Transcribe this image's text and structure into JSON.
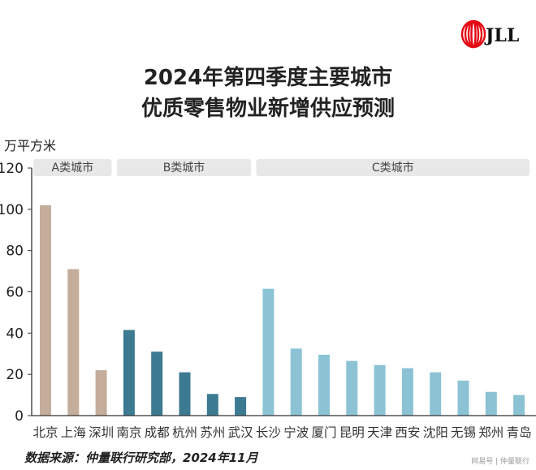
{
  "logo": {
    "text": "JLL",
    "color": "#e30613"
  },
  "chart_data": {
    "type": "bar",
    "title_lines": [
      "2024年第四季度主要城市",
      "优质零售物业新增供应预测"
    ],
    "ylabel": "万平方米",
    "ylim": [
      0,
      120
    ],
    "yticks": [
      0,
      20,
      40,
      60,
      80,
      100,
      120
    ],
    "grid": false,
    "categories": [
      "北京",
      "上海",
      "深圳",
      "南京",
      "成都",
      "杭州",
      "苏州",
      "武汉",
      "长沙",
      "宁波",
      "厦门",
      "昆明",
      "天津",
      "西安",
      "沈阳",
      "无锡",
      "郑州",
      "青岛"
    ],
    "values": [
      102,
      71,
      22,
      41.5,
      31,
      21,
      10.5,
      9,
      61.5,
      32.5,
      29.5,
      26.5,
      24.5,
      23,
      21,
      17,
      11.5,
      10
    ],
    "groups": [
      {
        "label": "A类城市",
        "start": 0,
        "end": 2,
        "color": "#c4ad9a"
      },
      {
        "label": "B类城市",
        "start": 3,
        "end": 7,
        "color": "#3c7a91"
      },
      {
        "label": "C类城市",
        "start": 8,
        "end": 17,
        "color": "#8cc3d4"
      }
    ]
  },
  "footer": {
    "source": "数据来源：仲量联行研究部，2024年11月",
    "watermark": "网易号 | 仲量联行"
  }
}
